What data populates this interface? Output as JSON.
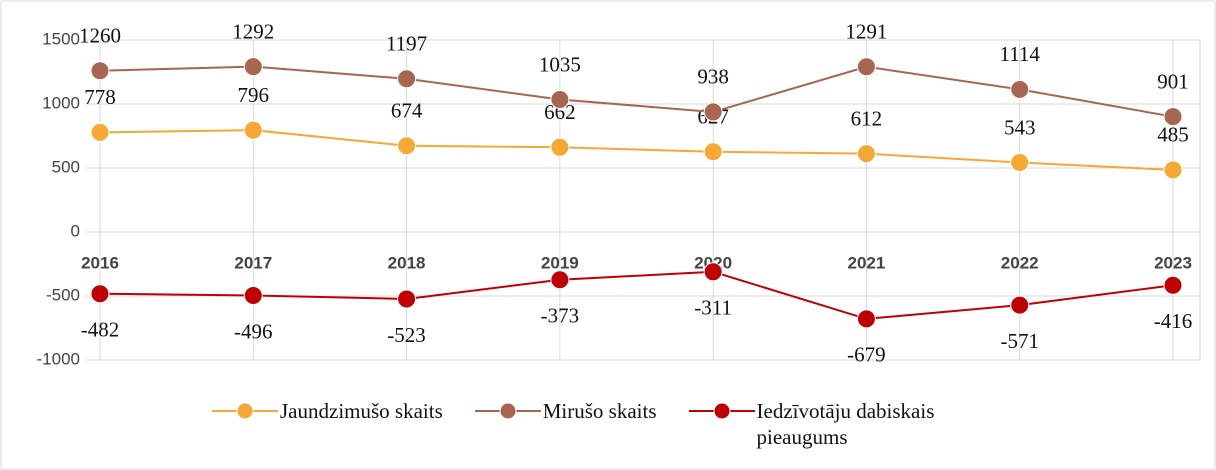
{
  "chart_data": {
    "type": "line",
    "categories": [
      "2016",
      "2017",
      "2018",
      "2019",
      "2020",
      "2021",
      "2022",
      "2023"
    ],
    "series": [
      {
        "name": "Jaundzimušo skaits",
        "color": "#f5a833",
        "values": [
          778,
          796,
          674,
          662,
          627,
          612,
          543,
          485
        ]
      },
      {
        "name": "Mirušo skaits",
        "color": "#a8654f",
        "values": [
          1260,
          1292,
          1197,
          1035,
          938,
          1291,
          1114,
          901
        ]
      },
      {
        "name": "Iedzīvotāju dabiskais pieaugums",
        "color": "#c00000",
        "values": [
          -482,
          -496,
          -523,
          -373,
          -311,
          -679,
          -571,
          -416
        ]
      }
    ],
    "ylim": [
      -1000,
      1500
    ],
    "yticks": [
      -1000,
      -500,
      0,
      500,
      1000,
      1500
    ],
    "grid": true
  }
}
